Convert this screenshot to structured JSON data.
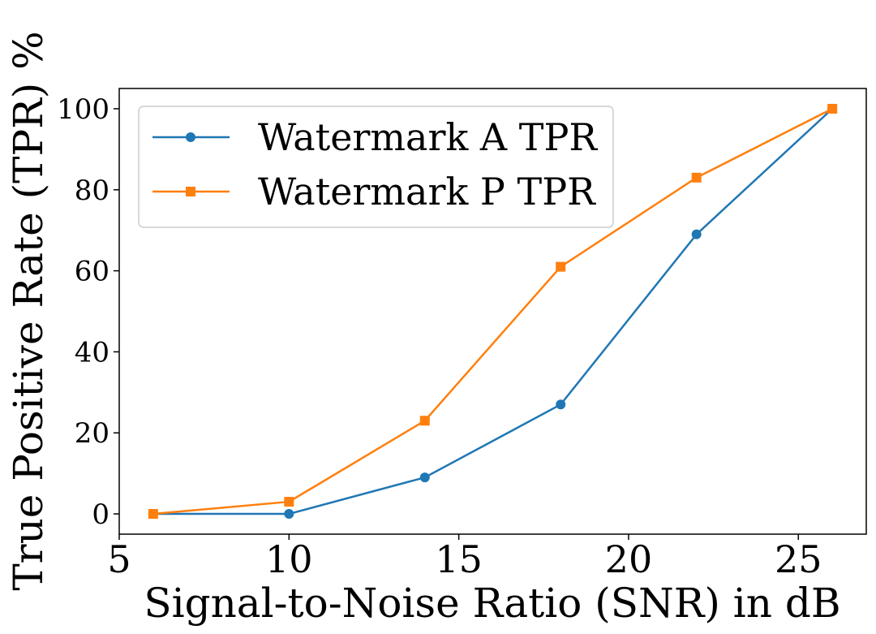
{
  "chart_data": {
    "type": "line",
    "title": "",
    "xlabel": "Signal-to-Noise Ratio (SNR) in dB",
    "ylabel": "True Positive Rate (TPR) %",
    "x": [
      6,
      10,
      14,
      18,
      22,
      26
    ],
    "xlim": [
      5,
      27
    ],
    "ylim": [
      -5,
      105
    ],
    "xticks": [
      5,
      10,
      15,
      20,
      25
    ],
    "yticks": [
      0,
      20,
      40,
      60,
      80,
      100
    ],
    "xtick_labels": [
      "5",
      "10",
      "15",
      "20",
      "25"
    ],
    "ytick_labels": [
      "0",
      "20",
      "40",
      "60",
      "80",
      "100"
    ],
    "grid": false,
    "legend_position": "upper-left",
    "series": [
      {
        "name": "Watermark A TPR",
        "color": "#1f77b4",
        "marker": "circle",
        "values": [
          0,
          0,
          9,
          27,
          69,
          100
        ]
      },
      {
        "name": "Watermark P TPR",
        "color": "#ff7f0e",
        "marker": "square",
        "values": [
          0,
          3,
          23,
          61,
          83,
          100
        ]
      }
    ]
  }
}
